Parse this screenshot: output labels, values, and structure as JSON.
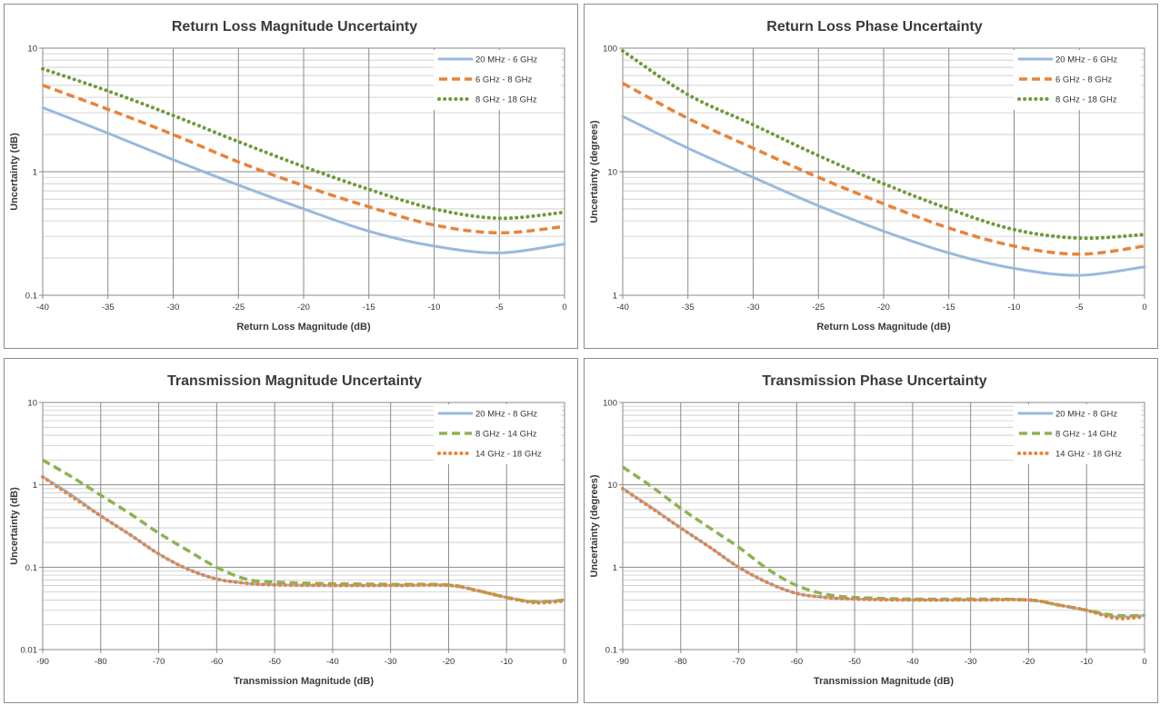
{
  "chart_data": [
    {
      "type": "line",
      "title": "Return Loss Magnitude Uncertainty",
      "xlabel": "Return Loss Magnitude (dB)",
      "ylabel": "Uncertainty (dB)",
      "xlim": [
        -40,
        0
      ],
      "ylim": [
        0.1,
        10
      ],
      "yscale": "log",
      "grid": true,
      "legend_position": "top-right",
      "x_ticks": [
        "-40",
        "-35",
        "-30",
        "-25",
        "-20",
        "-15",
        "-10",
        "-5",
        "0"
      ],
      "y_ticks": [
        "0.1",
        "1",
        "10"
      ],
      "x": [
        -40,
        -35,
        -30,
        -25,
        -20,
        -15,
        -10,
        -5,
        0
      ],
      "series": [
        {
          "name": "20 MHz - 6 GHz",
          "color": "#9ab8de",
          "style": "solid",
          "values": [
            3.3,
            2.05,
            1.25,
            0.78,
            0.5,
            0.33,
            0.25,
            0.22,
            0.26
          ]
        },
        {
          "name": "6 GHz - 8 GHz",
          "color": "#e8833a",
          "style": "dash",
          "values": [
            5.0,
            3.2,
            2.0,
            1.2,
            0.77,
            0.52,
            0.37,
            0.32,
            0.36
          ]
        },
        {
          "name": "8 GHz - 18 GHz",
          "color": "#6f9a3c",
          "style": "dot",
          "values": [
            6.8,
            4.5,
            2.85,
            1.75,
            1.1,
            0.72,
            0.5,
            0.42,
            0.47
          ]
        }
      ]
    },
    {
      "type": "line",
      "title": "Return Loss Phase Uncertainty",
      "xlabel": "Return Loss Magnitude (dB)",
      "ylabel": "Uncertainty (degrees)",
      "xlim": [
        -40,
        0
      ],
      "ylim": [
        1,
        100
      ],
      "yscale": "log",
      "grid": true,
      "legend_position": "top-right",
      "x_ticks": [
        "-40",
        "-35",
        "-30",
        "-25",
        "-20",
        "-15",
        "-10",
        "-5",
        "0"
      ],
      "y_ticks": [
        "1",
        "10",
        "100"
      ],
      "x": [
        -40,
        -35,
        -30,
        -25,
        -20,
        -15,
        -10,
        -5,
        0
      ],
      "series": [
        {
          "name": "20 MHz - 6 GHz",
          "color": "#9ab8de",
          "style": "solid",
          "values": [
            28,
            15.5,
            9.0,
            5.3,
            3.3,
            2.2,
            1.65,
            1.45,
            1.7
          ]
        },
        {
          "name": "6 GHz - 8 GHz",
          "color": "#e8833a",
          "style": "dash",
          "values": [
            52,
            27,
            15.5,
            9.0,
            5.5,
            3.5,
            2.5,
            2.15,
            2.5
          ]
        },
        {
          "name": "8 GHz - 18 GHz",
          "color": "#6f9a3c",
          "style": "dot",
          "values": [
            95,
            42,
            24,
            13.5,
            8.0,
            5.0,
            3.4,
            2.9,
            3.1
          ]
        }
      ]
    },
    {
      "type": "line",
      "title": "Transmission Magnitude Uncertainty",
      "xlabel": "Transmission Magnitude (dB)",
      "ylabel": "Uncertainty (dB)",
      "xlim": [
        -90,
        0
      ],
      "ylim": [
        0.01,
        10
      ],
      "yscale": "log",
      "grid": true,
      "legend_position": "top-right",
      "x_ticks": [
        "-90",
        "-80",
        "-70",
        "-60",
        "-50",
        "-40",
        "-30",
        "-20",
        "-10",
        "0"
      ],
      "y_ticks": [
        "0.01",
        "0.1",
        "1",
        "10"
      ],
      "x": [
        -90,
        -85,
        -80,
        -75,
        -70,
        -65,
        -60,
        -55,
        -50,
        -40,
        -30,
        -20,
        -15,
        -10,
        -5,
        0
      ],
      "series": [
        {
          "name": "20 MHz -  8 GHz",
          "color": "#9ab8de",
          "style": "solid",
          "values": [
            1.25,
            0.75,
            0.42,
            0.25,
            0.145,
            0.095,
            0.072,
            0.064,
            0.061,
            0.06,
            0.06,
            0.06,
            0.052,
            0.043,
            0.038,
            0.04
          ]
        },
        {
          "name": "8 GHz - 14 GHz",
          "color": "#8db352",
          "style": "dash",
          "values": [
            2.0,
            1.25,
            0.75,
            0.45,
            0.26,
            0.16,
            0.1,
            0.072,
            0.066,
            0.063,
            0.062,
            0.061,
            0.052,
            0.043,
            0.038,
            0.04
          ]
        },
        {
          "name": "14 GHz - 18 GHz",
          "color": "#e8833a",
          "style": "dot",
          "values": [
            1.25,
            0.72,
            0.42,
            0.25,
            0.145,
            0.095,
            0.072,
            0.064,
            0.061,
            0.06,
            0.06,
            0.06,
            0.052,
            0.043,
            0.037,
            0.039
          ]
        }
      ]
    },
    {
      "type": "line",
      "title": "Transmission Phase Uncertainty",
      "xlabel": "Transmission Magnitude (dB)",
      "ylabel": "Uncertainty (degrees)",
      "xlim": [
        -90,
        0
      ],
      "ylim": [
        0.1,
        100
      ],
      "yscale": "log",
      "grid": true,
      "legend_position": "top-right",
      "x_ticks": [
        "-90",
        "-80",
        "-70",
        "-60",
        "-50",
        "-40",
        "-30",
        "-20",
        "-10",
        "0"
      ],
      "y_ticks": [
        "0.1",
        "1",
        "10",
        "100"
      ],
      "x": [
        -90,
        -85,
        -80,
        -75,
        -70,
        -65,
        -60,
        -55,
        -50,
        -40,
        -30,
        -20,
        -15,
        -10,
        -5,
        0
      ],
      "series": [
        {
          "name": "20 MHz -  8 GHz",
          "color": "#9ab8de",
          "style": "solid",
          "values": [
            9.0,
            5.3,
            3.0,
            1.75,
            1.0,
            0.65,
            0.48,
            0.43,
            0.41,
            0.4,
            0.4,
            0.4,
            0.35,
            0.3,
            0.25,
            0.26
          ]
        },
        {
          "name": "8 GHz - 14 GHz",
          "color": "#8db352",
          "style": "dash",
          "values": [
            16.5,
            9.5,
            5.2,
            3.0,
            1.75,
            0.95,
            0.6,
            0.47,
            0.43,
            0.41,
            0.41,
            0.4,
            0.35,
            0.3,
            0.26,
            0.26
          ]
        },
        {
          "name": "14 GHz - 18 GHz",
          "color": "#e8833a",
          "style": "dot",
          "values": [
            9.0,
            5.2,
            3.0,
            1.75,
            1.0,
            0.65,
            0.48,
            0.43,
            0.41,
            0.4,
            0.4,
            0.4,
            0.35,
            0.3,
            0.24,
            0.25
          ]
        }
      ]
    }
  ]
}
